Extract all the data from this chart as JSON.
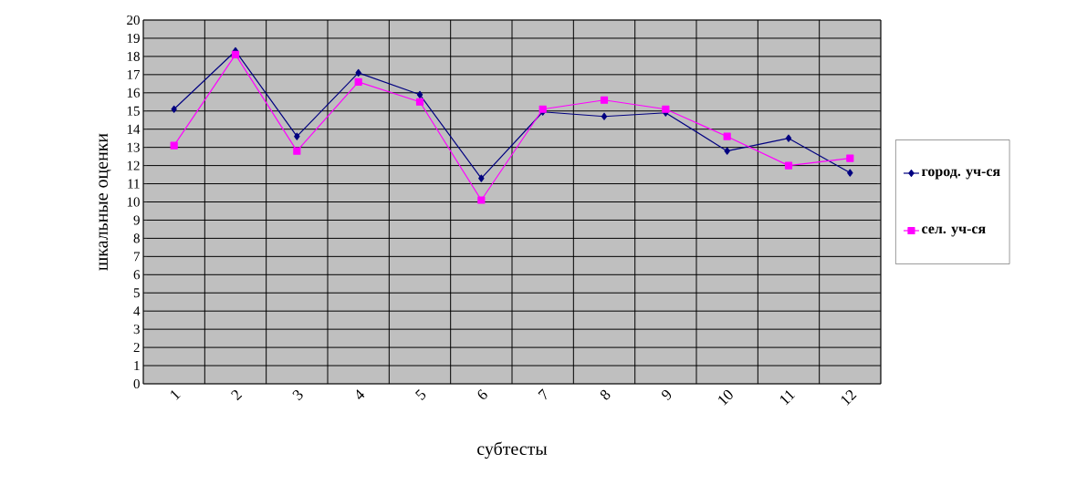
{
  "chart_data": {
    "type": "line",
    "xlabel": "субтесты",
    "ylabel": "шкальные оценки",
    "categories": [
      "1",
      "2",
      "3",
      "4",
      "5",
      "6",
      "7",
      "8",
      "9",
      "10",
      "11",
      "12"
    ],
    "series": [
      {
        "name": "город. уч-ся",
        "color": "#000080",
        "marker": "diamond",
        "values": [
          15.1,
          18.3,
          13.6,
          17.1,
          15.9,
          11.3,
          14.95,
          14.7,
          14.9,
          12.8,
          13.5,
          11.6
        ]
      },
      {
        "name": "сел. уч-ся",
        "color": "#ff00ff",
        "marker": "square",
        "values": [
          13.1,
          18.1,
          12.8,
          16.6,
          15.5,
          10.1,
          15.1,
          15.6,
          15.1,
          13.6,
          12.0,
          12.4
        ]
      }
    ],
    "ylim": [
      0,
      20
    ],
    "yticks": [
      0,
      1,
      2,
      3,
      4,
      5,
      6,
      7,
      8,
      9,
      10,
      11,
      12,
      13,
      14,
      15,
      16,
      17,
      18,
      19,
      20
    ],
    "grid": true,
    "legend": "right",
    "line_style": "solid"
  }
}
